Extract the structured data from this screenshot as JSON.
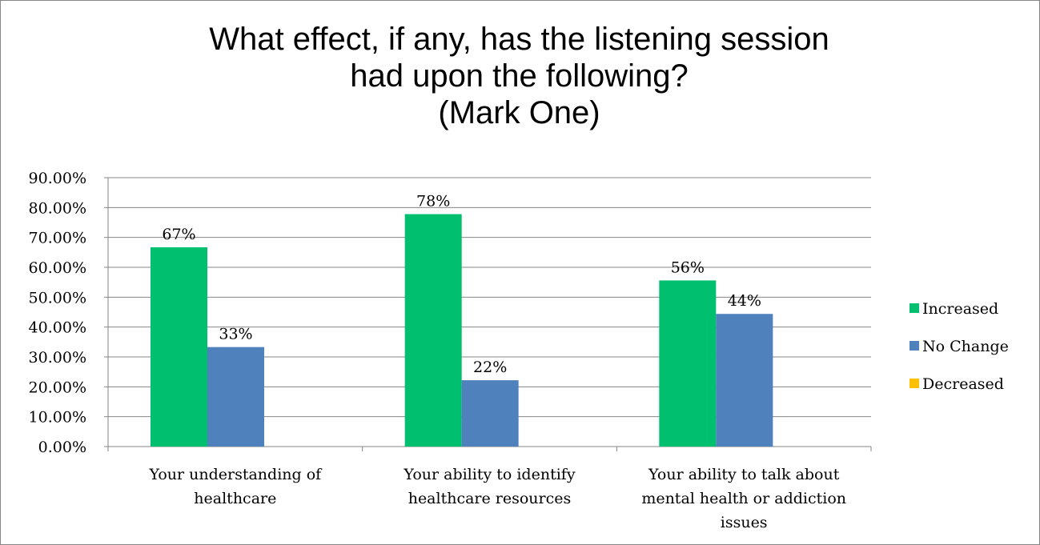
{
  "chart_data": {
    "type": "bar",
    "title": [
      "What effect, if any, has the listening session",
      "had upon the following?",
      "(Mark One)"
    ],
    "categories": [
      [
        "Your understanding of",
        "healthcare"
      ],
      [
        "Your ability to identify",
        "healthcare resources"
      ],
      [
        "Your ability to talk about",
        "mental health or addiction",
        "issues"
      ]
    ],
    "series": [
      {
        "name": "Increased",
        "color": "#00BF6F",
        "values": [
          0.667,
          0.778,
          0.556
        ],
        "labels": [
          "67%",
          "78%",
          "56%"
        ]
      },
      {
        "name": "No Change",
        "color": "#4F81BD",
        "values": [
          0.333,
          0.222,
          0.444
        ],
        "labels": [
          "33%",
          "22%",
          "44%"
        ]
      },
      {
        "name": "Decreased",
        "color": "#FFC000",
        "values": [
          0,
          0,
          0
        ],
        "labels": [
          "",
          "",
          ""
        ]
      }
    ],
    "ylim": [
      0,
      0.9
    ],
    "y_ticks": [
      "0.00%",
      "10.00%",
      "20.00%",
      "30.00%",
      "40.00%",
      "50.00%",
      "60.00%",
      "70.00%",
      "80.00%",
      "90.00%"
    ],
    "grid": true,
    "legend_position": "right"
  }
}
